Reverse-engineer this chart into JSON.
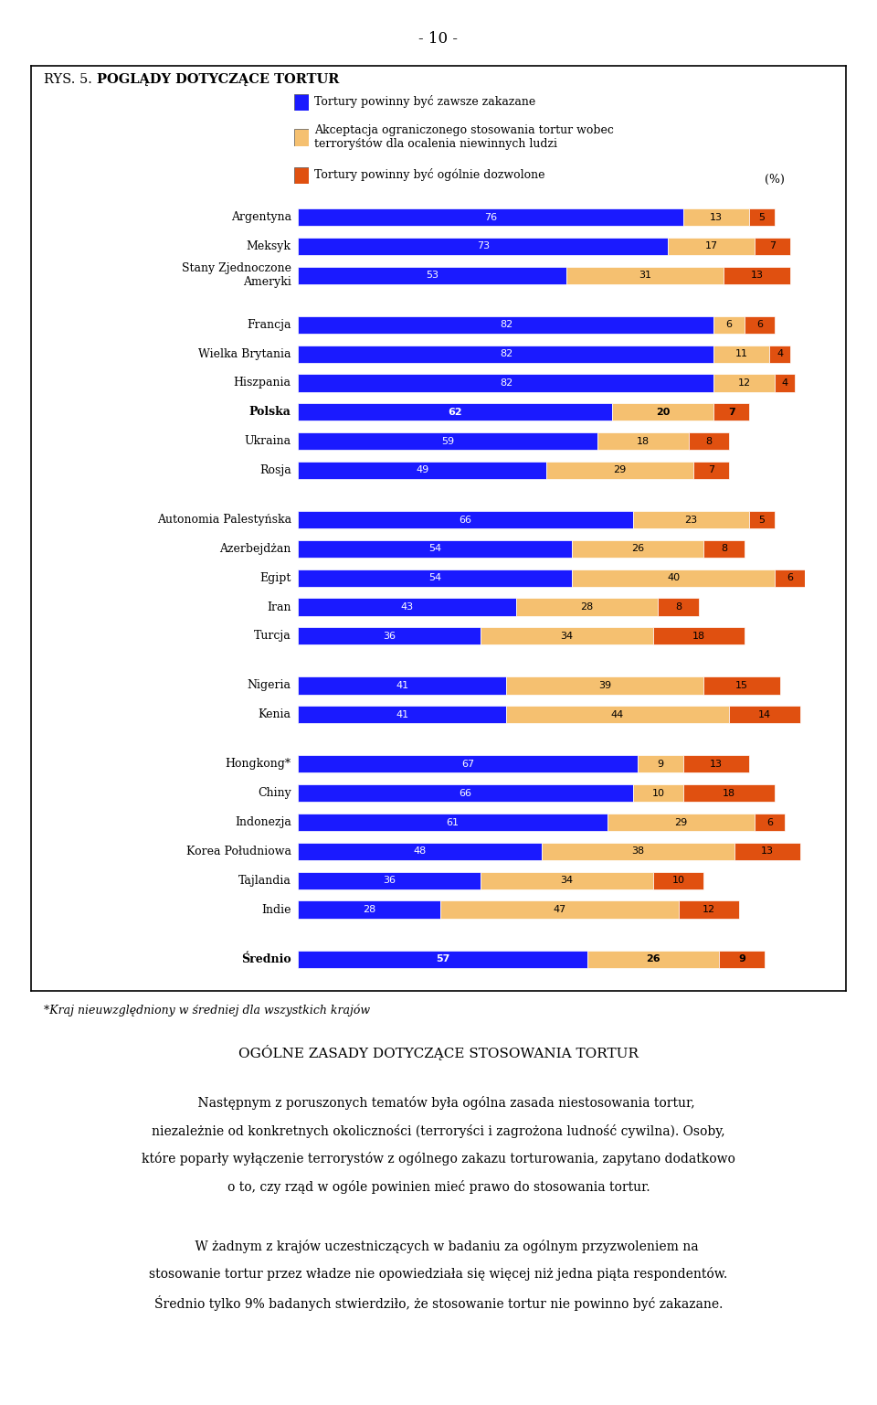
{
  "page_header": "- 10 -",
  "chart_title_prefix": "RYS. 5. ",
  "chart_title_bold": "POGLĄDY DOTYCZĄCE TORTUR",
  "legend_colors": [
    "#1a1aff",
    "#f5c070",
    "#e05010"
  ],
  "legend_texts": [
    "Tortury powinny być zawsze zakazane",
    "Akceptacja ograniczonego stosowania tortur wobec\nterroryśtów dla ocalenia niewinnych ludzi",
    "Tortury powinny być ogólnie dozwolone"
  ],
  "pct_label": "(%)",
  "countries": [
    "Argentyna",
    "Meksyk",
    "Stany Zjednoczone\nAmeryki",
    "GAP1",
    "Francja",
    "Wielka Brytania",
    "Hiszpania",
    "Polska",
    "Ukraina",
    "Rosja",
    "GAP2",
    "Autonomia Palestyńska",
    "Azerbejdżan",
    "Egipt",
    "Iran",
    "Turcja",
    "GAP3",
    "Nigeria",
    "Kenia",
    "GAP4",
    "Hongkong*",
    "Chiny",
    "Indonezja",
    "Korea Południowa",
    "Tajlandia",
    "Indie",
    "GAP5",
    "Średnio"
  ],
  "bold_countries": [
    "Polska",
    "Średnio"
  ],
  "values": {
    "Argentyna": [
      76,
      13,
      5
    ],
    "Meksyk": [
      73,
      17,
      7
    ],
    "Stany Zjednoczone\nAmeryki": [
      53,
      31,
      13
    ],
    "Francja": [
      82,
      6,
      6
    ],
    "Wielka Brytania": [
      82,
      11,
      4
    ],
    "Hiszpania": [
      82,
      12,
      4
    ],
    "Polska": [
      62,
      20,
      7
    ],
    "Ukraina": [
      59,
      18,
      8
    ],
    "Rosja": [
      49,
      29,
      7
    ],
    "Autonomia Palestyńska": [
      66,
      23,
      5
    ],
    "Azerbejdżan": [
      54,
      26,
      8
    ],
    "Egipt": [
      54,
      40,
      6
    ],
    "Iran": [
      43,
      28,
      8
    ],
    "Turcja": [
      36,
      34,
      18
    ],
    "Nigeria": [
      41,
      39,
      15
    ],
    "Kenia": [
      41,
      44,
      14
    ],
    "Hongkong*": [
      67,
      9,
      13
    ],
    "Chiny": [
      66,
      10,
      18
    ],
    "Indonezja": [
      61,
      29,
      6
    ],
    "Korea Południowa": [
      48,
      38,
      13
    ],
    "Tajlandia": [
      36,
      34,
      10
    ],
    "Indie": [
      28,
      47,
      12
    ],
    "Średnio": [
      57,
      26,
      9
    ]
  },
  "colors": [
    "#1a1aff",
    "#f5c070",
    "#e05010"
  ],
  "footnote": "*Kraj nieuwzględniony w średniej dla wszystkich krajów",
  "section_title": "OGÓLNE ZASADY DOTYCZĄCE STOSOWANIA TORTUR",
  "para1_lines": [
    "    Następnym z poruszonych tematów była ogólna zasada niestosowania tortur,",
    "niezależnie od konkretnych okoliczności (terroryści i zagrożona ludność cywilna). Osoby,",
    "które poparły wyłączenie terrorystów z ogólnego zakazu torturowania, zapytano dodatkowo",
    "o to, czy rząd w ogóle powinien mieć prawo do stosowania tortur."
  ],
  "para2_lines": [
    "    W żadnym z krajów uczestniczących w badaniu za ogólnym przyzwoleniem na",
    "stosowanie tortur przez władze nie opowiedziała się więcej niż jedna piąta respondentów.",
    "Średnio tylko 9% badanych stwierdziło, że stosowanie tortur nie powinno być zakazane."
  ]
}
